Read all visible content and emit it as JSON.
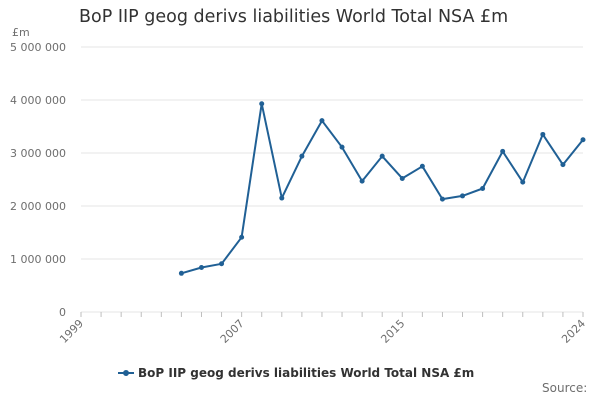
{
  "chart_data": {
    "type": "line",
    "title": "BoP IIP geog derivs liabilities World Total NSA £m",
    "y_unit": "£m",
    "ylim": [
      0,
      5000000
    ],
    "y_ticks": [
      0,
      1000000,
      2000000,
      3000000,
      4000000,
      5000000
    ],
    "y_tick_labels": [
      "0",
      "1 000 000",
      "2 000 000",
      "3 000 000",
      "4 000 000",
      "5 000 000"
    ],
    "xlim": [
      1999,
      2024
    ],
    "x_ticks": [
      1999,
      2007,
      2015,
      2024
    ],
    "x_tick_labels": [
      "1999",
      "2007",
      "2015",
      "2024"
    ],
    "grid": true,
    "legend_position": "bottom",
    "series": [
      {
        "name": "BoP IIP geog derivs liabilities World Total NSA £m",
        "color": "#206095",
        "x": [
          2004,
          2005,
          2006,
          2007,
          2008,
          2009,
          2010,
          2011,
          2012,
          2013,
          2014,
          2015,
          2016,
          2017,
          2018,
          2019,
          2020,
          2021,
          2022,
          2023,
          2024
        ],
        "y": [
          730000,
          840000,
          910000,
          1410000,
          3930000,
          2150000,
          2940000,
          3610000,
          3110000,
          2470000,
          2940000,
          2520000,
          2750000,
          2130000,
          2190000,
          2330000,
          3030000,
          2450000,
          3350000,
          2780000,
          3250000
        ]
      }
    ]
  },
  "source_label": "Source:"
}
